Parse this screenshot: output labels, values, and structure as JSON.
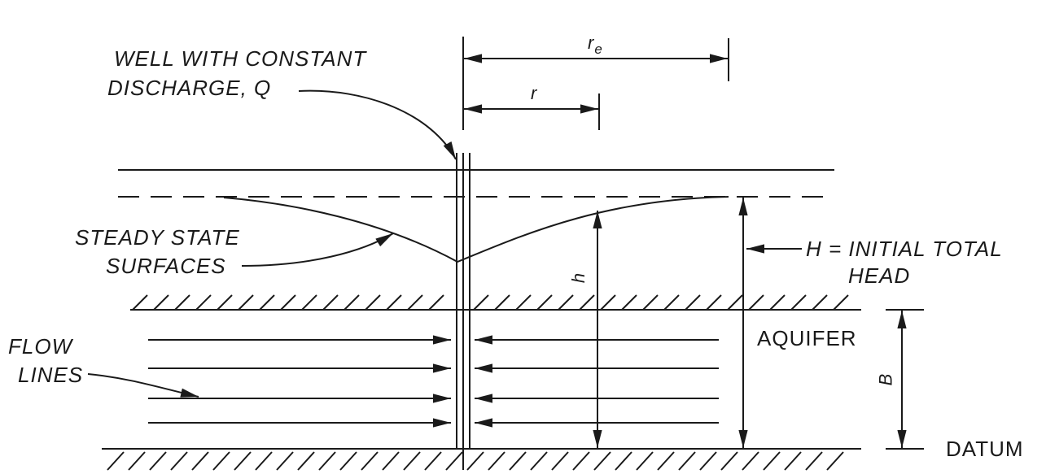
{
  "labels": {
    "well_line1": "WELL WITH CONSTANT",
    "well_line2": "DISCHARGE, Q",
    "re_main": "r",
    "re_sub": "e",
    "r": "r",
    "steady_line1": "STEADY STATE",
    "steady_line2": "SURFACES",
    "h": "h",
    "H_line1": "H = INITIAL TOTAL",
    "H_line2": "HEAD",
    "aquifer": "AQUIFER",
    "B": "B",
    "flow_line1": "FLOW",
    "flow_line2": "LINES",
    "datum": "DATUM"
  },
  "colors": {
    "ink": "#1a1a1a",
    "background": "#ffffff"
  }
}
